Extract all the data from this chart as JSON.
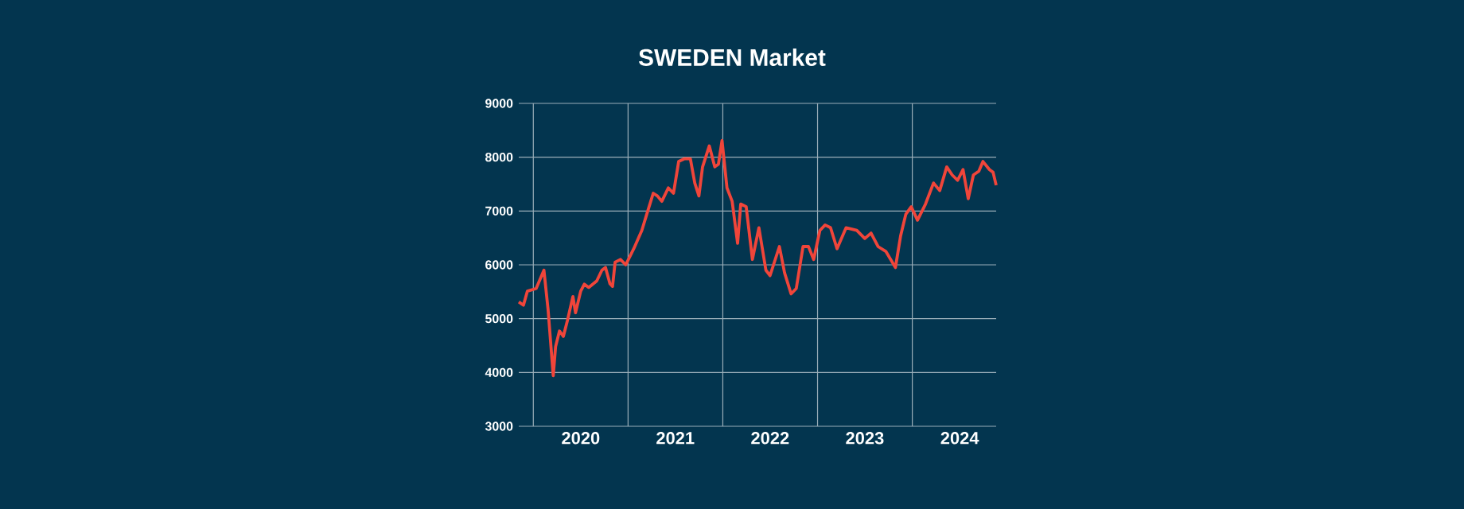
{
  "chart_data": {
    "type": "line",
    "title": "SWEDEN Market",
    "x": [
      "2019-11-06",
      "2019-11-24",
      "2019-12-09",
      "2020-01-12",
      "2020-02-11",
      "2020-02-27",
      "2020-03-18",
      "2020-03-27",
      "2020-04-11",
      "2020-04-26",
      "2020-05-12",
      "2020-06-02",
      "2020-06-12",
      "2020-07-02",
      "2020-07-16",
      "2020-08-02",
      "2020-09-02",
      "2020-09-22",
      "2020-10-06",
      "2020-10-23",
      "2020-11-02",
      "2020-11-12",
      "2020-12-03",
      "2020-12-23",
      "2021-01-23",
      "2021-02-23",
      "2021-03-14",
      "2021-04-08",
      "2021-04-24",
      "2021-05-11",
      "2021-06-05",
      "2021-06-25",
      "2021-07-15",
      "2021-08-05",
      "2021-08-29",
      "2021-09-15",
      "2021-10-01",
      "2021-10-15",
      "2021-11-10",
      "2021-12-01",
      "2021-12-15",
      "2021-12-29",
      "2022-01-17",
      "2022-02-06",
      "2022-02-27",
      "2022-03-11",
      "2022-04-01",
      "2022-04-25",
      "2022-05-20",
      "2022-06-16",
      "2022-07-02",
      "2022-08-07",
      "2022-08-27",
      "2022-09-21",
      "2022-10-11",
      "2022-11-06",
      "2022-11-27",
      "2022-12-17",
      "2023-01-10",
      "2023-01-30",
      "2023-02-20",
      "2023-03-17",
      "2023-04-21",
      "2023-06-01",
      "2023-07-02",
      "2023-07-26",
      "2023-08-22",
      "2023-09-21",
      "2023-10-28",
      "2023-11-17",
      "2023-12-07",
      "2023-12-28",
      "2024-01-21",
      "2024-02-21",
      "2024-03-23",
      "2024-04-16",
      "2024-05-13",
      "2024-06-03",
      "2024-06-24",
      "2024-07-15",
      "2024-08-04",
      "2024-08-24",
      "2024-09-14",
      "2024-09-30",
      "2024-10-25",
      "2024-11-08",
      "2024-11-20"
    ],
    "series": [
      {
        "color": "#f0453a",
        "values": [
          5310,
          5250,
          5510,
          5560,
          5900,
          5170,
          3940,
          4480,
          4770,
          4670,
          4970,
          5410,
          5110,
          5510,
          5640,
          5580,
          5700,
          5900,
          5950,
          5650,
          5600,
          6050,
          6100,
          6000,
          6300,
          6640,
          6940,
          7330,
          7280,
          7180,
          7430,
          7330,
          7920,
          7970,
          7970,
          7520,
          7280,
          7820,
          8210,
          7820,
          7870,
          8310,
          7430,
          7180,
          6400,
          7130,
          7080,
          6100,
          6690,
          5900,
          5800,
          6340,
          5850,
          5460,
          5560,
          6340,
          6340,
          6100,
          6640,
          6740,
          6690,
          6300,
          6690,
          6640,
          6490,
          6590,
          6340,
          6250,
          5950,
          6540,
          6940,
          7080,
          6830,
          7130,
          7520,
          7380,
          7820,
          7670,
          7570,
          7770,
          7230,
          7670,
          7740,
          7920,
          7770,
          7720,
          7480
        ]
      }
    ],
    "xlim": [
      "2019-11-06",
      "2024-11-20"
    ],
    "xticks": [
      {
        "value": "2020-01-01",
        "label": null
      },
      {
        "value": "2020-07-02",
        "label": "2020"
      },
      {
        "value": "2021-01-01",
        "label": null
      },
      {
        "value": "2021-07-02",
        "label": "2021"
      },
      {
        "value": "2022-01-01",
        "label": null
      },
      {
        "value": "2022-07-02",
        "label": "2022"
      },
      {
        "value": "2023-01-01",
        "label": null
      },
      {
        "value": "2023-07-02",
        "label": "2023"
      },
      {
        "value": "2024-01-01",
        "label": null
      },
      {
        "value": "2024-07-02",
        "label": "2024"
      }
    ],
    "ylim": [
      3000,
      9000
    ],
    "yticks": [
      3000,
      4000,
      5000,
      6000,
      7000,
      8000,
      9000
    ],
    "grid": true,
    "marker": "none",
    "line_style": "solid"
  }
}
